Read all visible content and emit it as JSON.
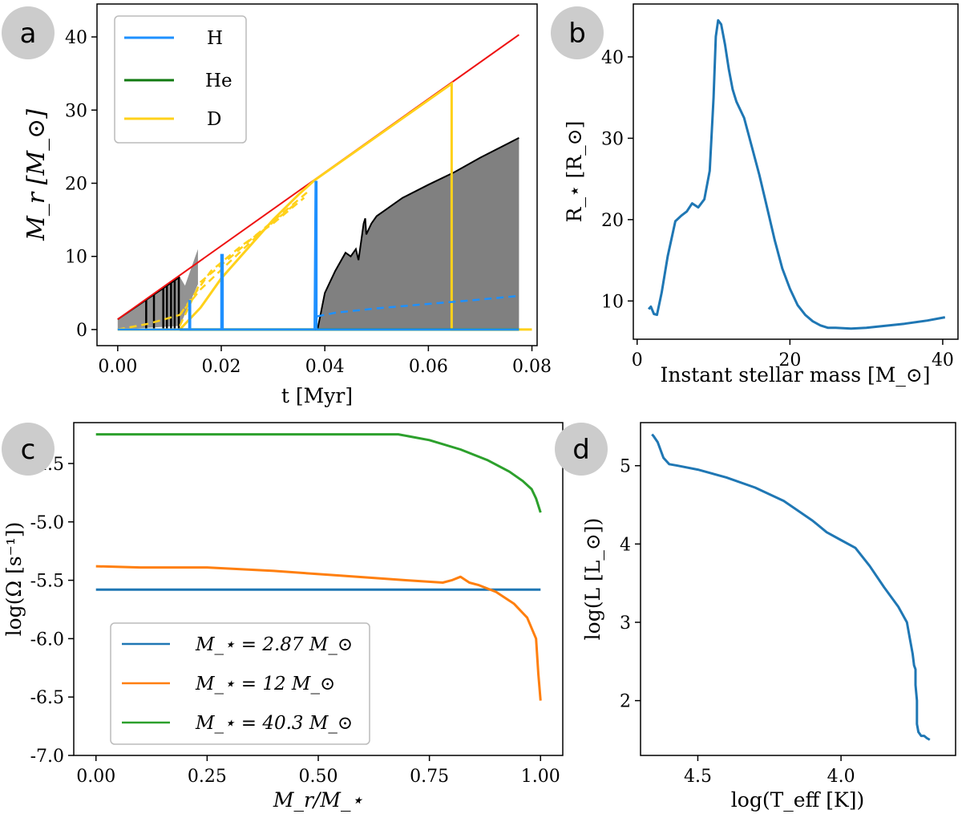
{
  "colors": {
    "H": "#1e90ff",
    "He": "#117a11",
    "D": "#ffd11a",
    "accretion": "#ee1111",
    "convective": "#808080",
    "blue": "#1f77b4",
    "orange": "#ff7f0e",
    "green": "#2ca02c",
    "badge": "#cccccc"
  },
  "chart_data": [
    {
      "panel": "a",
      "type": "line",
      "xlabel": "t [Myr]",
      "ylabel": "M_r [M_⊙]",
      "xlim": [
        -0.004,
        0.081
      ],
      "ylim": [
        -2.2,
        44.5
      ],
      "xticks": [
        "0.00",
        "0.02",
        "0.04",
        "0.06",
        "0.08"
      ],
      "yticks": [
        "0",
        "10",
        "20",
        "30",
        "40"
      ],
      "legend": {
        "position": "top-left",
        "entries": [
          "H",
          "He",
          "D"
        ]
      },
      "series": [
        {
          "name": "accretion",
          "x": [
            0.0,
            0.0775
          ],
          "y": [
            1.4,
            40.3
          ]
        },
        {
          "name": "H",
          "x": [
            0.0,
            0.0138,
            0.0138,
            0.014,
            0.014,
            0.02,
            0.02,
            0.0203,
            0.0203,
            0.038,
            0.0382,
            0.0384,
            0.0384,
            0.0775
          ],
          "y": [
            0,
            0,
            3.9,
            3.9,
            0,
            0,
            10.2,
            10.2,
            0,
            0,
            20.2,
            20.2,
            0,
            0
          ]
        },
        {
          "name": "H-dashed",
          "x": [
            0.0385,
            0.042,
            0.05,
            0.06,
            0.07,
            0.0775
          ],
          "y": [
            1.8,
            2.3,
            2.9,
            3.5,
            4.1,
            4.6
          ]
        },
        {
          "name": "He",
          "x": [
            0.012,
            0.0775
          ],
          "y": [
            0,
            0
          ]
        },
        {
          "name": "D",
          "x": [
            0.0,
            0.012,
            0.016,
            0.02,
            0.025,
            0.03,
            0.035,
            0.038,
            0.0645,
            0.0645,
            0.0645,
            0.08
          ],
          "y": [
            0,
            0,
            3,
            7,
            11,
            15,
            18.5,
            20.4,
            33.6,
            33.6,
            0,
            0
          ]
        },
        {
          "name": "D-dashed-1",
          "x": [
            0.0,
            0.006,
            0.012,
            0.016,
            0.022,
            0.028,
            0.034
          ],
          "y": [
            0,
            0.8,
            2.0,
            5.5,
            9.5,
            13.5,
            17.0
          ]
        },
        {
          "name": "D-dashed-2",
          "x": [
            0.012,
            0.018,
            0.024,
            0.03,
            0.036
          ],
          "y": [
            2.0,
            8.0,
            11.5,
            14.5,
            18.0
          ]
        },
        {
          "name": "D-dashed-3",
          "x": [
            0.012,
            0.016,
            0.022,
            0.026,
            0.032,
            0.037
          ],
          "y": [
            0.5,
            6.5,
            10.0,
            12.5,
            16.0,
            19.0
          ]
        },
        {
          "name": "convective-top",
          "x": [
            0.0386,
            0.04,
            0.042,
            0.044,
            0.045,
            0.046,
            0.0465,
            0.0475,
            0.0478,
            0.048,
            0.049,
            0.05,
            0.052,
            0.055,
            0.06,
            0.065,
            0.07,
            0.0775
          ],
          "y": [
            0,
            5.0,
            8.0,
            10.5,
            10.0,
            11.0,
            9.5,
            14.5,
            15.2,
            13.0,
            14.5,
            15.5,
            16.5,
            18.0,
            19.8,
            21.5,
            23.5,
            26.2
          ]
        },
        {
          "name": "early-convective-top",
          "x": [
            0.0,
            0.012,
            0.013,
            0.0155
          ],
          "y": [
            1.4,
            7.2,
            6.0,
            11.0
          ]
        }
      ]
    },
    {
      "panel": "b",
      "type": "line",
      "xlabel": "Instant stellar mass [M_⊙]",
      "ylabel": "R_⋆ [R_⊙]",
      "xlim": [
        -0.5,
        42
      ],
      "ylim": [
        5.3,
        46.5
      ],
      "xticks": [
        "0",
        "20",
        "40"
      ],
      "yticks": [
        "10",
        "20",
        "30",
        "40"
      ],
      "series": [
        {
          "name": "radius",
          "x": [
            1.5,
            1.8,
            2.2,
            2.6,
            3.2,
            4.0,
            5.0,
            5.8,
            6.5,
            7.2,
            8.0,
            8.8,
            9.5,
            10.0,
            10.3,
            10.6,
            11.0,
            11.5,
            12.0,
            12.5,
            13.0,
            14.0,
            15.0,
            16.0,
            17.0,
            18.0,
            19.0,
            20.0,
            21.0,
            22.0,
            23.0,
            24.0,
            25.0,
            26.0,
            28.0,
            30.0,
            32.0,
            35.0,
            38.0,
            40.3
          ],
          "y": [
            9.0,
            9.3,
            8.4,
            8.3,
            11.0,
            15.5,
            19.8,
            20.5,
            21.0,
            22.0,
            21.5,
            22.5,
            26.0,
            35.0,
            42.5,
            44.5,
            44.0,
            41.5,
            38.5,
            36.0,
            34.5,
            32.5,
            29.0,
            25.5,
            21.5,
            17.5,
            14.0,
            11.5,
            9.5,
            8.3,
            7.5,
            7.0,
            6.7,
            6.7,
            6.6,
            6.7,
            6.9,
            7.2,
            7.6,
            8.0
          ]
        }
      ]
    },
    {
      "panel": "c",
      "type": "line",
      "xlabel": "M_r/M_⋆",
      "ylabel": "log(Ω [s⁻¹])",
      "xlim": [
        -0.05,
        1.05
      ],
      "ylim": [
        -7.0,
        -4.15
      ],
      "xticks": [
        "0.00",
        "0.25",
        "0.50",
        "0.75",
        "1.00"
      ],
      "yticks": [
        "-4.5",
        "-5.0",
        "-5.5",
        "-6.0",
        "-6.5",
        "-7.0"
      ],
      "legend": {
        "position": "bottom-left",
        "entries": [
          "M_⋆ = 2.87 M_⊙",
          "M_⋆ = 12 M_⊙",
          "M_⋆ = 40.3 M_⊙"
        ]
      },
      "series": [
        {
          "name": "M_⋆ = 2.87 M_⊙",
          "x": [
            0.0,
            1.0
          ],
          "y": [
            -5.58,
            -5.58
          ]
        },
        {
          "name": "M_⋆ = 12 M_⊙",
          "x": [
            0.0,
            0.1,
            0.25,
            0.4,
            0.55,
            0.7,
            0.78,
            0.8,
            0.82,
            0.84,
            0.86,
            0.9,
            0.94,
            0.97,
            0.99,
            0.995,
            1.0
          ],
          "y": [
            -5.38,
            -5.39,
            -5.39,
            -5.42,
            -5.46,
            -5.5,
            -5.52,
            -5.5,
            -5.47,
            -5.52,
            -5.54,
            -5.6,
            -5.7,
            -5.82,
            -6.0,
            -6.3,
            -6.53
          ]
        },
        {
          "name": "M_⋆ = 40.3 M_⊙",
          "x": [
            0.0,
            0.3,
            0.5,
            0.68,
            0.75,
            0.82,
            0.88,
            0.93,
            0.96,
            0.98,
            0.99,
            1.0
          ],
          "y": [
            -4.25,
            -4.25,
            -4.25,
            -4.25,
            -4.3,
            -4.38,
            -4.47,
            -4.57,
            -4.65,
            -4.72,
            -4.8,
            -4.92
          ]
        }
      ]
    },
    {
      "panel": "d",
      "type": "line",
      "xlabel": "log(T_eff [K])",
      "ylabel": "log(L [L_⊙])",
      "xlim": [
        4.7,
        3.6
      ],
      "ylim": [
        1.3,
        5.55
      ],
      "xreversed": true,
      "xticks": [
        "4.5",
        "4.0"
      ],
      "yticks": [
        "2",
        "3",
        "4",
        "5"
      ],
      "series": [
        {
          "name": "track",
          "x": [
            4.66,
            4.655,
            4.64,
            4.62,
            4.6,
            4.57,
            4.5,
            4.4,
            4.3,
            4.2,
            4.1,
            4.05,
            4.0,
            3.95,
            3.9,
            3.85,
            3.8,
            3.77,
            3.76,
            3.75,
            3.745,
            3.74,
            3.74,
            3.735,
            3.735,
            3.73,
            3.72,
            3.71,
            3.7,
            3.69
          ],
          "y": [
            5.4,
            5.38,
            5.3,
            5.1,
            5.02,
            5.0,
            4.95,
            4.85,
            4.72,
            4.55,
            4.3,
            4.15,
            4.05,
            3.95,
            3.72,
            3.45,
            3.2,
            3.0,
            2.8,
            2.6,
            2.45,
            2.4,
            2.2,
            2.0,
            1.7,
            1.6,
            1.55,
            1.55,
            1.52,
            1.5
          ]
        }
      ]
    }
  ],
  "badges": {
    "a": "a",
    "b": "b",
    "c": "c",
    "d": "d"
  }
}
